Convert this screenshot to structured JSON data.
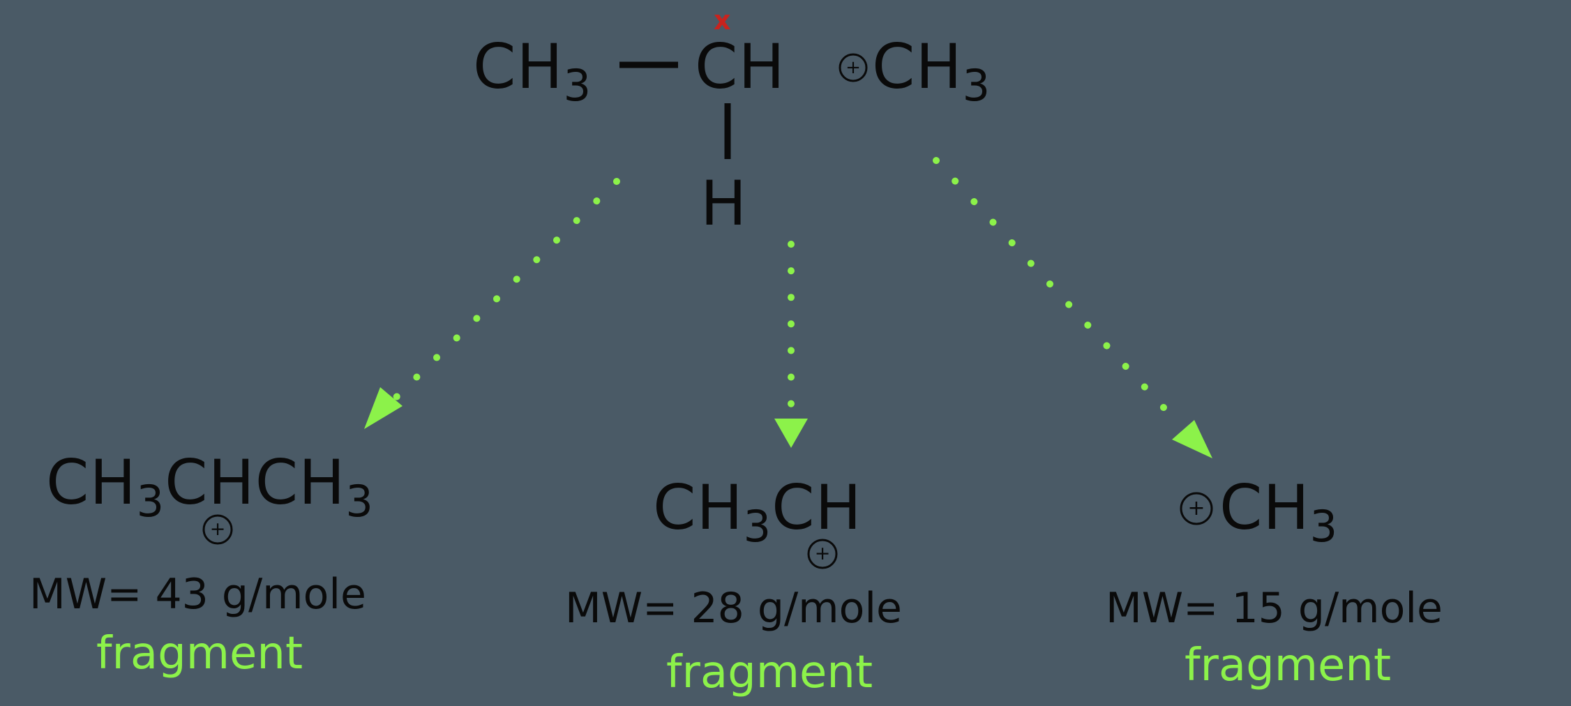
{
  "parent": {
    "left_group": "CH",
    "left_sub": "3",
    "center_atom": "CH",
    "bottom_atom": "H",
    "right_group": "CH",
    "right_sub": "3",
    "radical_mark": "x",
    "charge_symbol": "+"
  },
  "fragments": [
    {
      "formula_parts": [
        "CH",
        "3",
        "CHCH",
        "3"
      ],
      "mw_label": "MW= 43 g/mole",
      "tag": "fragment"
    },
    {
      "formula_parts": [
        "CH",
        "3",
        "CH"
      ],
      "mw_label": "MW= 28 g/mole",
      "tag": "fragment"
    },
    {
      "formula_parts": [
        "CH",
        "3"
      ],
      "mw_label": "MW= 15 g/mole",
      "tag": "fragment"
    }
  ],
  "colors": {
    "background": "#4a5a66",
    "ink": "#0a0a0a",
    "arrow": "#8cf24a",
    "fragment_label": "#8cf24a",
    "radical_mark": "#c8231e"
  }
}
